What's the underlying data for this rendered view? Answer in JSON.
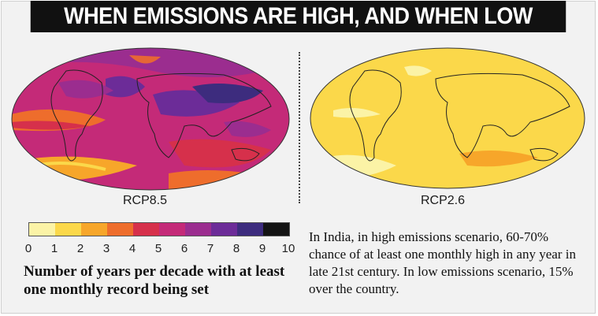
{
  "title": "WHEN EMISSIONS ARE HIGH, AND WHEN LOW",
  "maps": {
    "left_label": "RCP8.5",
    "right_label": "RCP2.6"
  },
  "legend": {
    "ticks": [
      "0",
      "1",
      "2",
      "3",
      "4",
      "5",
      "6",
      "7",
      "8",
      "9",
      "10"
    ],
    "colors": [
      "#fbf3a6",
      "#fbd84a",
      "#f7a62a",
      "#ee6d2c",
      "#d6304b",
      "#c42a78",
      "#9b2d8f",
      "#6c2c98",
      "#3d2c7e",
      "#141414"
    ],
    "caption": "Number of years per decade with at least one monthly record being set"
  },
  "note": "In India, in high emissions scenario, 60-70% chance of at least one monthly high in any year in late 21st century. In low emissions scenario, 15% over the country."
}
